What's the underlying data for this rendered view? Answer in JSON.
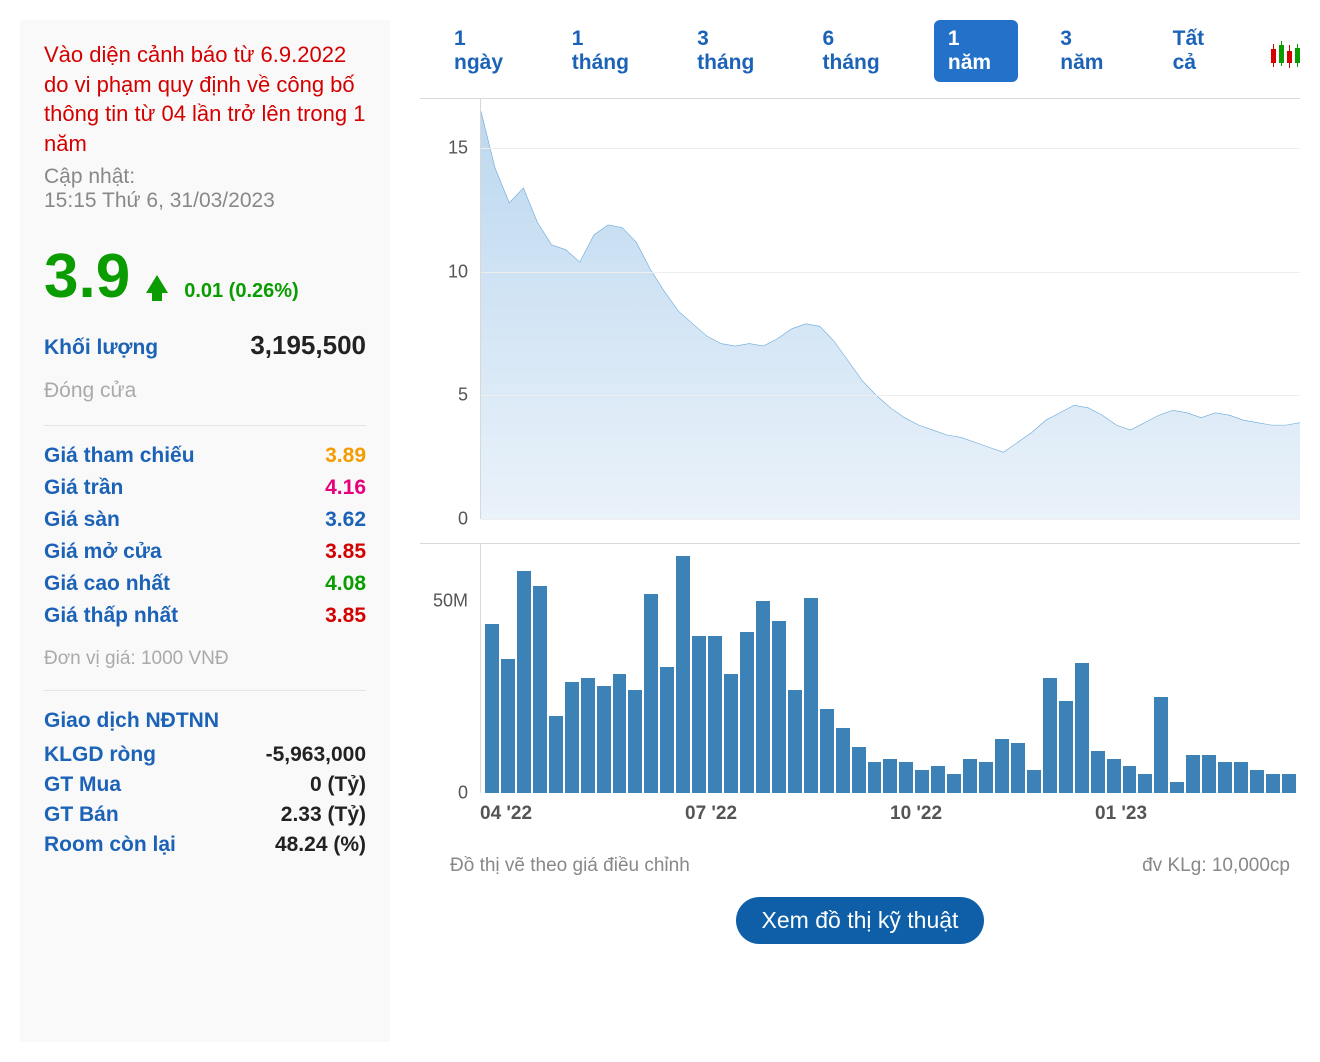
{
  "sidebar": {
    "warning": "Vào diện cảnh báo từ 6.9.2022 do vi phạm quy định về công bố thông tin từ 04 lần trở lên trong 1 năm",
    "update_label": "Cập nhật:",
    "update_time": "15:15 Thứ 6, 31/03/2023",
    "price": "3.9",
    "change": "0.01 (0.26%)",
    "volume_label": "Khối lượng",
    "volume": "3,195,500",
    "status": "Đóng cửa",
    "stats": [
      {
        "label": "Giá tham chiếu",
        "value": "3.89",
        "cls": "c-orange"
      },
      {
        "label": "Giá trần",
        "value": "4.16",
        "cls": "c-magenta"
      },
      {
        "label": "Giá sàn",
        "value": "3.62",
        "cls": "c-blue"
      },
      {
        "label": "Giá mở cửa",
        "value": "3.85",
        "cls": "c-red"
      },
      {
        "label": "Giá cao nhất",
        "value": "4.08",
        "cls": "c-green"
      },
      {
        "label": "Giá thấp nhất",
        "value": "3.85",
        "cls": "c-red"
      }
    ],
    "unit": "Đơn vị giá: 1000 VNĐ",
    "foreign_title": "Giao dịch NĐTNN",
    "foreign": [
      {
        "label": "KLGD ròng",
        "value": "-5,963,000"
      },
      {
        "label": "GT Mua",
        "value": "0 (Tỷ)"
      },
      {
        "label": "GT Bán",
        "value": "2.33 (Tỷ)"
      },
      {
        "label": "Room còn lại",
        "value": "48.24 (%)"
      }
    ]
  },
  "tabs": {
    "items": [
      "1 ngày",
      "1 tháng",
      "3 tháng",
      "6 tháng",
      "1 năm",
      "3 năm",
      "Tất cả"
    ],
    "active": 4
  },
  "price_chart": {
    "type": "area",
    "line_color": "#6aa8d8",
    "line_width": 2,
    "fill_top": "#bcd8ef",
    "fill_bottom": "#eaf2fa",
    "background_color": "#ffffff",
    "grid_color": "#eeeeee",
    "ylim": [
      0,
      17
    ],
    "yticks": [
      0,
      5,
      10,
      15
    ],
    "tick_fontsize": 18,
    "tick_color": "#555555",
    "series": [
      16.5,
      14.2,
      12.8,
      13.4,
      12.0,
      11.1,
      10.9,
      10.4,
      11.5,
      11.9,
      11.8,
      11.2,
      10.1,
      9.2,
      8.4,
      7.9,
      7.4,
      7.1,
      7.0,
      7.1,
      7.0,
      7.3,
      7.7,
      7.9,
      7.8,
      7.2,
      6.4,
      5.6,
      5.0,
      4.5,
      4.1,
      3.8,
      3.6,
      3.4,
      3.3,
      3.1,
      2.9,
      2.7,
      3.1,
      3.5,
      4.0,
      4.3,
      4.6,
      4.5,
      4.2,
      3.8,
      3.6,
      3.9,
      4.2,
      4.4,
      4.3,
      4.1,
      4.3,
      4.2,
      4.0,
      3.9,
      3.8,
      3.8,
      3.9
    ]
  },
  "volume_chart": {
    "type": "bar",
    "bar_color": "#3d82b6",
    "background_color": "#ffffff",
    "ylim": [
      0,
      65
    ],
    "yticks": [
      0,
      50
    ],
    "ytick_labels": [
      "0",
      "50M"
    ],
    "tick_fontsize": 18,
    "tick_color": "#555555",
    "values": [
      44,
      35,
      58,
      54,
      20,
      29,
      30,
      28,
      31,
      27,
      52,
      33,
      62,
      41,
      41,
      31,
      42,
      50,
      45,
      27,
      51,
      22,
      17,
      12,
      8,
      9,
      8,
      6,
      7,
      5,
      9,
      8,
      14,
      13,
      6,
      30,
      24,
      34,
      11,
      9,
      7,
      5,
      25,
      3,
      10,
      10,
      8,
      8,
      6,
      5,
      5
    ]
  },
  "xaxis_labels": [
    "04 '22",
    "07 '22",
    "10 '22",
    "01 '23"
  ],
  "notes": {
    "left": "Đồ thị vẽ theo giá điều chỉnh",
    "right": "đv KLg: 10,000cp"
  },
  "tech_button": "Xem đồ thị kỹ thuật"
}
